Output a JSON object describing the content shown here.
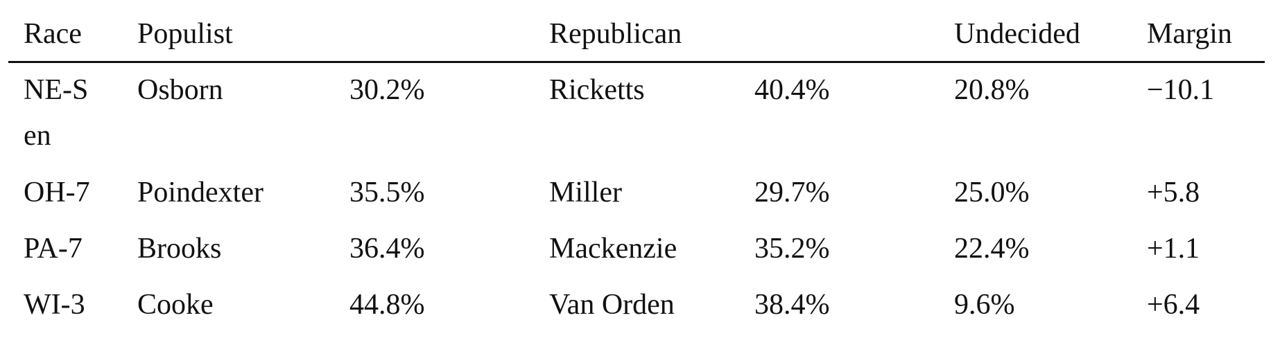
{
  "table": {
    "header": [
      "Race",
      "Populist",
      "Republican",
      "Undecided",
      "Margin"
    ],
    "rows": [
      [
        "NE-Sen",
        "Osborn",
        "30.2%",
        "Ricketts",
        "40.4%",
        "20.8%",
        "−10.1"
      ],
      [
        "OH-7",
        "Poindexter",
        "35.5%",
        "Miller",
        "29.7%",
        "25.0%",
        "+5.8"
      ],
      [
        "PA-7",
        "Brooks",
        "36.4%",
        "Mackenzie",
        "35.2%",
        "22.4%",
        "+1.1"
      ],
      [
        "WI-3",
        "Cooke",
        "44.8%",
        "Van Orden",
        "38.4%",
        "9.6%",
        "+6.4"
      ]
    ]
  }
}
